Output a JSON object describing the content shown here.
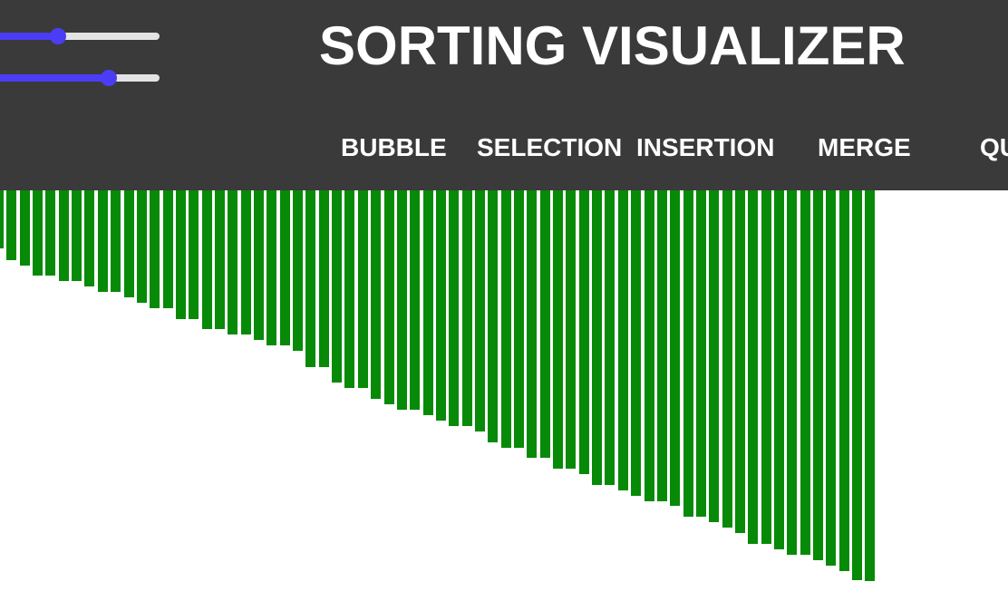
{
  "header": {
    "title": "SORTING VISUALIZER",
    "sliders": [
      {
        "name": "array-size",
        "value": 0.4
      },
      {
        "name": "speed",
        "value": 0.7
      }
    ],
    "algorithms": [
      {
        "id": "bubble",
        "label": "BUBBLE"
      },
      {
        "id": "selection",
        "label": "SELECTION"
      },
      {
        "id": "insertion",
        "label": "INSERTION"
      },
      {
        "id": "merge",
        "label": "MERGE"
      },
      {
        "id": "quick",
        "label": "QUICK"
      }
    ]
  },
  "colors": {
    "header_bg": "#3a3a3a",
    "accent": "#4b3df5",
    "bar": "#078a07"
  },
  "array": {
    "values": [
      64,
      77,
      83,
      94,
      94,
      100,
      100,
      106,
      112,
      112,
      118,
      124,
      130,
      130,
      142,
      142,
      153,
      153,
      159,
      159,
      165,
      171,
      171,
      177,
      195,
      195,
      212,
      218,
      218,
      230,
      236,
      242,
      242,
      248,
      254,
      260,
      260,
      266,
      278,
      284,
      284,
      295,
      295,
      307,
      307,
      313,
      325,
      325,
      331,
      337,
      343,
      343,
      348,
      360,
      360,
      366,
      372,
      378,
      390,
      390,
      396,
      402,
      402,
      408,
      414,
      420,
      430,
      431
    ]
  }
}
